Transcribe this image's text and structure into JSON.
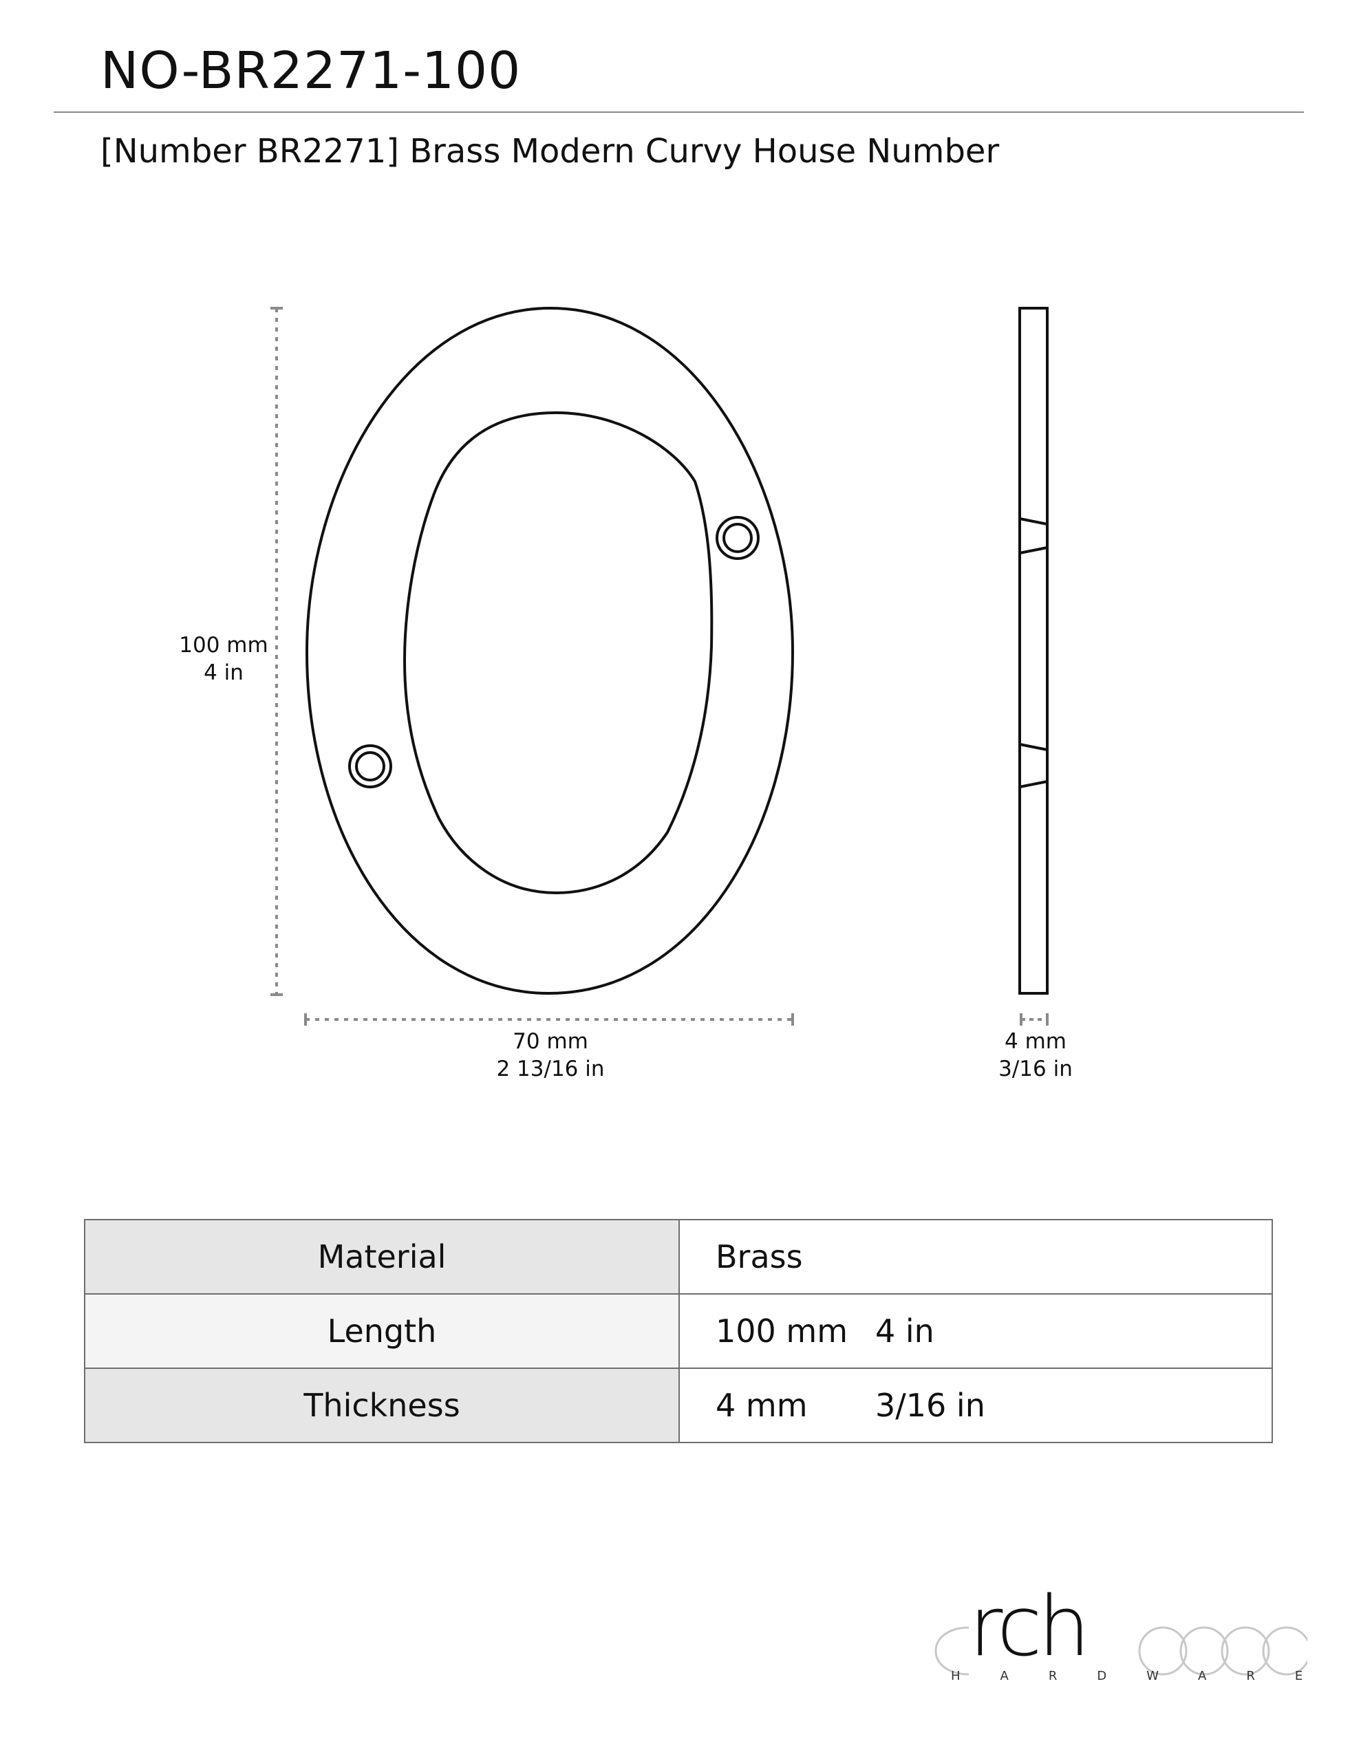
{
  "header": {
    "sku": "NO-BR2271-100",
    "description": "[Number BR2271] Brass Modern Curvy House Number"
  },
  "dimensions": {
    "height": {
      "mm": "100 mm",
      "in": "4 in"
    },
    "width": {
      "mm": "70 mm",
      "in": "2 13/16 in"
    },
    "thickness": {
      "mm": "4 mm",
      "in": "3/16 in"
    }
  },
  "specs": [
    {
      "label": "Material",
      "value": "Brass",
      "value_in": ""
    },
    {
      "label": "Length",
      "value": "100 mm",
      "value_in": "4 in"
    },
    {
      "label": "Thickness",
      "value": "4 mm",
      "value_in": "3/16 in"
    }
  ],
  "logo": {
    "word": "rch",
    "sub": "HARDWARE"
  },
  "colors": {
    "line": "#111111",
    "dim_line": "#8a8a8a",
    "table_header": "#e6e6e6"
  }
}
